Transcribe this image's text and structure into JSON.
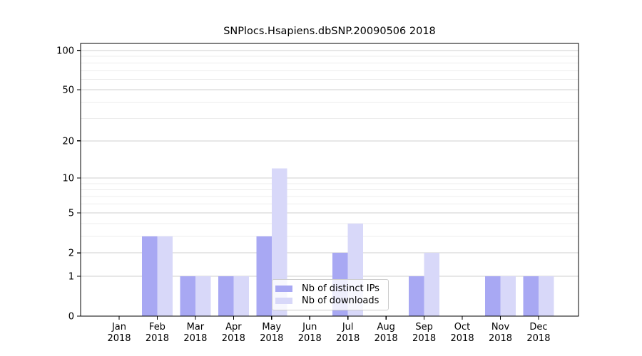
{
  "chart_data": {
    "type": "bar",
    "title": "SNPlocs.Hsapiens.dbSNP.20090506 2018",
    "categories": [
      "Jan",
      "Feb",
      "Mar",
      "Apr",
      "May",
      "Jun",
      "Jul",
      "Aug",
      "Sep",
      "Oct",
      "Nov",
      "Dec"
    ],
    "x_year_label": "2018",
    "series": [
      {
        "name": "Nb of distinct IPs",
        "color": "#a8a8f3",
        "values": [
          0,
          3,
          1,
          1,
          3,
          0,
          2,
          0,
          1,
          0,
          1,
          1
        ]
      },
      {
        "name": "Nb of downloads",
        "color": "#d8d8f9",
        "values": [
          0,
          3,
          1,
          1,
          12,
          0,
          4,
          0,
          2,
          0,
          1,
          1
        ]
      }
    ],
    "yscale": "log1p",
    "ylim": [
      0,
      113
    ],
    "yticks": [
      0,
      1,
      2,
      5,
      10,
      20,
      50,
      100
    ],
    "yticks_minor": [
      3,
      4,
      6,
      7,
      8,
      9,
      30,
      40,
      60,
      70,
      80,
      90
    ],
    "grid": {
      "major_color": "#cfcfcf",
      "minor_color": "#ececec"
    },
    "axis_color": "#000000",
    "legend_position": "lower center"
  }
}
